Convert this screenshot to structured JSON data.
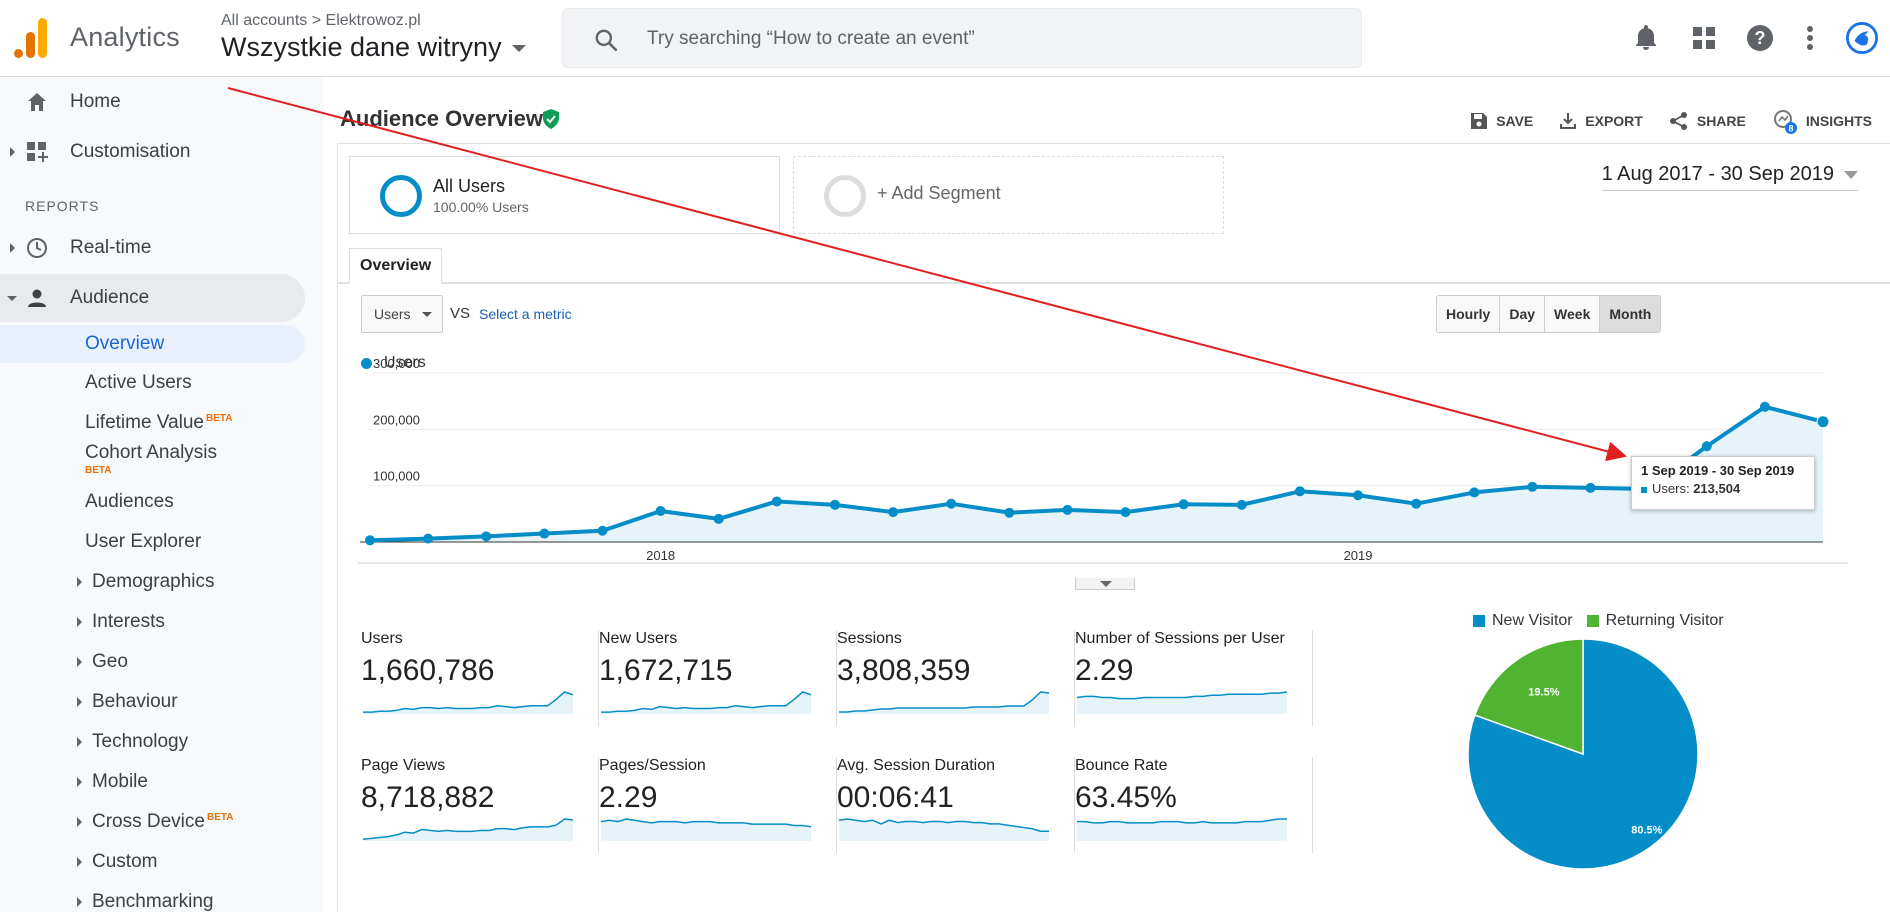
{
  "header": {
    "app_name": "Analytics",
    "crumb_root": "All accounts",
    "crumb_sep": ">",
    "crumb_account": "Elektrowoz.pl",
    "property": "Wszystkie dane witryny",
    "search_placeholder": "Try searching “How to create an event”",
    "icons": [
      "bell-icon",
      "apps-grid-icon",
      "help-icon",
      "more-vert-icon",
      "account-avatar-icon"
    ]
  },
  "sidebar": {
    "home": "Home",
    "customisation": "Customisation",
    "reports_header": "REPORTS",
    "realtime": "Real-time",
    "audience": "Audience",
    "audience_items": [
      {
        "label": "Overview"
      },
      {
        "label": "Active Users"
      },
      {
        "label": "Lifetime Value",
        "beta": "BETA"
      },
      {
        "label": "Cohort Analysis",
        "beta": "BETA"
      },
      {
        "label": "Audiences"
      },
      {
        "label": "User Explorer"
      },
      {
        "label": "Demographics"
      },
      {
        "label": "Interests"
      },
      {
        "label": "Geo"
      },
      {
        "label": "Behaviour"
      },
      {
        "label": "Technology"
      },
      {
        "label": "Mobile"
      },
      {
        "label": "Cross Device",
        "beta": "BETA"
      },
      {
        "label": "Custom"
      },
      {
        "label": "Benchmarking"
      }
    ]
  },
  "page": {
    "title": "Audience Overview",
    "actions": {
      "save": "SAVE",
      "export": "EXPORT",
      "share": "SHARE",
      "insights": "INSIGHTS",
      "insights_badge": "8"
    },
    "segment1_name": "All Users",
    "segment1_pct": "100.00% Users",
    "segment2_name": "+ Add Segment",
    "date_range": "1 Aug 2017 - 30 Sep 2019",
    "tab": "Overview",
    "metric": "Users",
    "vs": "VS",
    "select_metric": "Select a metric",
    "granularity": [
      "Hourly",
      "Day",
      "Week",
      "Month"
    ],
    "granularity_selected": "Month"
  },
  "chart_data": {
    "type": "line",
    "series": [
      {
        "name": "Users",
        "x": [
          "2017-08",
          "2017-09",
          "2017-10",
          "2017-11",
          "2017-12",
          "2018-01",
          "2018-02",
          "2018-03",
          "2018-04",
          "2018-05",
          "2018-06",
          "2018-07",
          "2018-08",
          "2018-09",
          "2018-10",
          "2018-11",
          "2018-12",
          "2019-01",
          "2019-02",
          "2019-03",
          "2019-04",
          "2019-05",
          "2019-06",
          "2019-07",
          "2019-08",
          "2019-09"
        ],
        "values": [
          3000,
          6000,
          10000,
          15000,
          20000,
          55000,
          41000,
          72000,
          66000,
          53000,
          68000,
          52000,
          57000,
          53000,
          67000,
          66000,
          90000,
          83000,
          68000,
          88000,
          98000,
          96000,
          94000,
          170000,
          240000,
          213504
        ]
      }
    ],
    "y_ticks": [
      "100,000",
      "200,000",
      "300,000"
    ],
    "x_ticks": [
      "2018",
      "2019"
    ],
    "ylim": [
      0,
      300000
    ],
    "color": "#058dc7",
    "tooltip": {
      "title": "1 Sep 2019 - 30 Sep 2019",
      "label": "Users:",
      "value": "213,504"
    }
  },
  "metrics": [
    {
      "label": "Users",
      "value": "1,660,786",
      "spark": [
        2,
        2,
        3,
        3,
        4,
        6,
        5,
        7,
        7,
        6,
        7,
        6,
        6,
        6,
        7,
        7,
        9,
        8,
        7,
        8,
        9,
        9,
        9,
        16,
        24,
        21
      ]
    },
    {
      "label": "New Users",
      "value": "1,672,715",
      "spark": [
        2,
        2,
        3,
        3,
        4,
        6,
        5,
        8,
        7,
        6,
        7,
        6,
        6,
        6,
        7,
        7,
        9,
        8,
        7,
        8,
        9,
        9,
        9,
        16,
        24,
        21
      ]
    },
    {
      "label": "Sessions",
      "value": "3,808,359",
      "spark": [
        2,
        2,
        3,
        3,
        4,
        5,
        5,
        6,
        6,
        6,
        6,
        6,
        6,
        6,
        6,
        6,
        7,
        7,
        7,
        7,
        8,
        8,
        8,
        14,
        22,
        21
      ]
    },
    {
      "label": "Number of Sessions per User",
      "value": "2.29",
      "spark": [
        15,
        16,
        16,
        15,
        15,
        14,
        14,
        14,
        15,
        15,
        15,
        15,
        15,
        15,
        16,
        16,
        17,
        17,
        18,
        18,
        18,
        18,
        18,
        19,
        19,
        20
      ]
    },
    {
      "label": "Page Views",
      "value": "8,718,882",
      "spark": [
        2,
        3,
        4,
        5,
        7,
        10,
        9,
        13,
        12,
        11,
        12,
        11,
        11,
        11,
        12,
        12,
        14,
        14,
        13,
        15,
        16,
        16,
        16,
        18,
        25,
        24
      ]
    },
    {
      "label": "Pages/Session",
      "value": "2.29",
      "spark": [
        15,
        16,
        15,
        17,
        16,
        15,
        14,
        15,
        15,
        15,
        14,
        15,
        15,
        15,
        14,
        14,
        14,
        14,
        13,
        13,
        13,
        13,
        13,
        12,
        12,
        11
      ]
    },
    {
      "label": "Avg. Session Duration",
      "value": "00:06:41",
      "spark": [
        17,
        18,
        17,
        16,
        17,
        14,
        17,
        15,
        16,
        16,
        15,
        16,
        16,
        15,
        16,
        16,
        15,
        15,
        14,
        14,
        13,
        12,
        11,
        10,
        8,
        8
      ]
    },
    {
      "label": "Bounce Rate",
      "value": "63.45%",
      "spark": [
        15,
        15,
        14,
        14,
        15,
        15,
        14,
        14,
        14,
        14,
        15,
        15,
        15,
        14,
        14,
        15,
        14,
        14,
        14,
        14,
        15,
        15,
        15,
        16,
        17,
        17
      ]
    }
  ],
  "pie": {
    "legend": [
      {
        "label": "New Visitor",
        "color": "#058dc7"
      },
      {
        "label": "Returning Visitor",
        "color": "#50b432"
      }
    ],
    "slices": [
      {
        "label": "80.5%",
        "value": 80.5
      },
      {
        "label": "19.5%",
        "value": 19.5
      }
    ]
  }
}
